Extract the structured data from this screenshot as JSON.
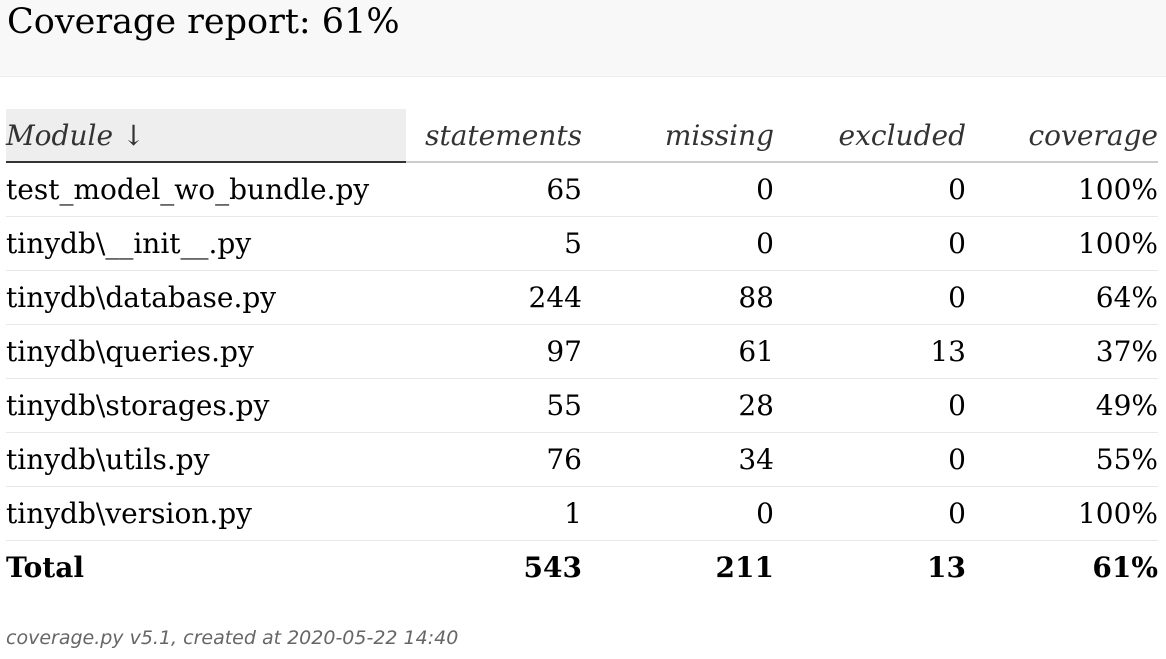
{
  "header": {
    "title": "Coverage report: 61%"
  },
  "table": {
    "columns": {
      "module": "Module ↓",
      "statements": "statements",
      "missing": "missing",
      "excluded": "excluded",
      "coverage": "coverage"
    },
    "rows": [
      {
        "module": "test_model_wo_bundle.py",
        "statements": "65",
        "missing": "0",
        "excluded": "0",
        "coverage": "100%"
      },
      {
        "module": "tinydb\\__init__.py",
        "statements": "5",
        "missing": "0",
        "excluded": "0",
        "coverage": "100%"
      },
      {
        "module": "tinydb\\database.py",
        "statements": "244",
        "missing": "88",
        "excluded": "0",
        "coverage": "64%"
      },
      {
        "module": "tinydb\\queries.py",
        "statements": "97",
        "missing": "61",
        "excluded": "13",
        "coverage": "37%"
      },
      {
        "module": "tinydb\\storages.py",
        "statements": "55",
        "missing": "28",
        "excluded": "0",
        "coverage": "49%"
      },
      {
        "module": "tinydb\\utils.py",
        "statements": "76",
        "missing": "34",
        "excluded": "0",
        "coverage": "55%"
      },
      {
        "module": "tinydb\\version.py",
        "statements": "1",
        "missing": "0",
        "excluded": "0",
        "coverage": "100%"
      }
    ],
    "total": {
      "module": "Total",
      "statements": "543",
      "missing": "211",
      "excluded": "13",
      "coverage": "61%"
    }
  },
  "footer": {
    "text": "coverage.py v5.1, created at 2020-05-22 14:40"
  }
}
